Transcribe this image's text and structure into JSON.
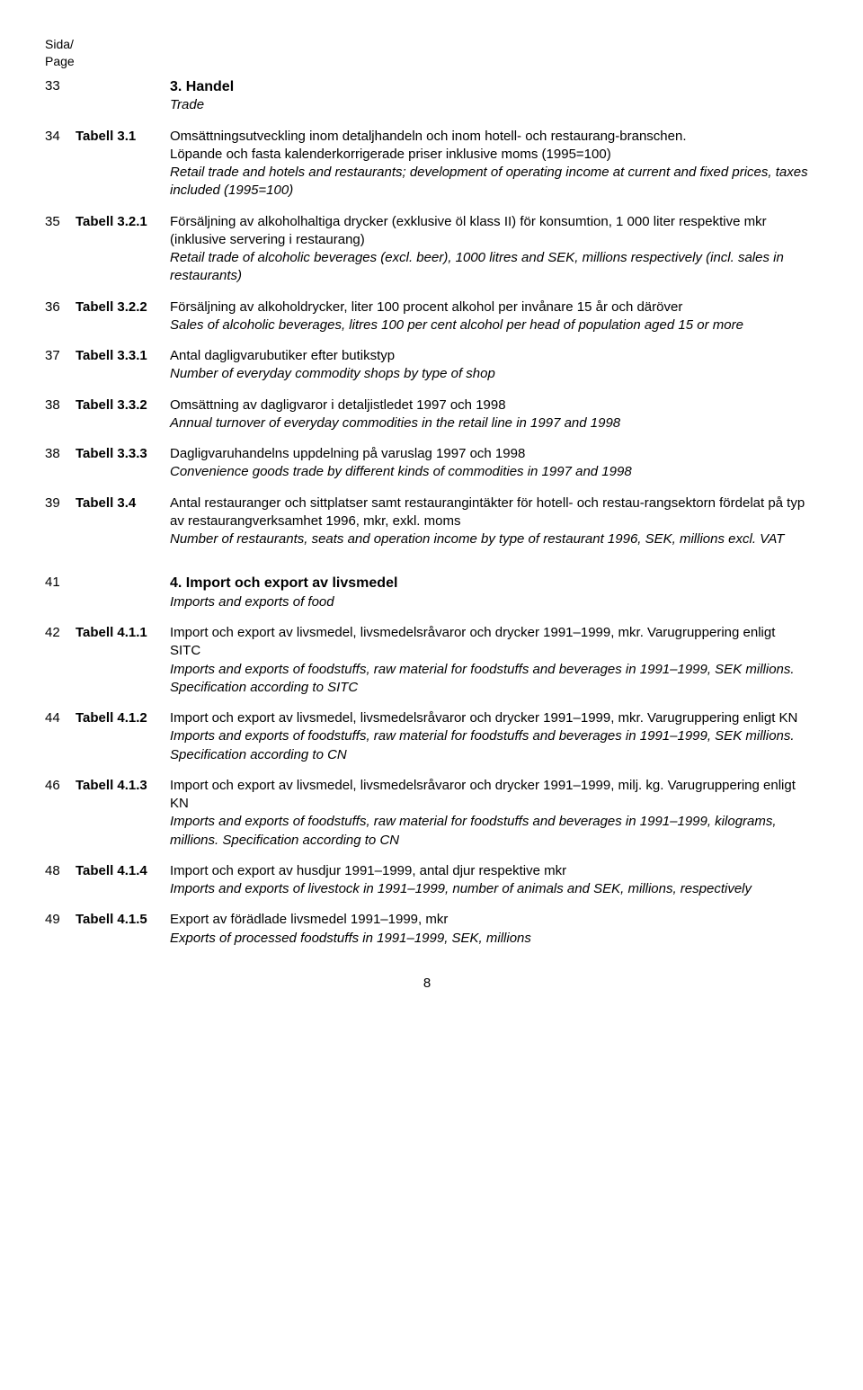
{
  "header": {
    "l1": "Sida/",
    "l2": "Page"
  },
  "entries": [
    {
      "page": "33",
      "label": "",
      "sv_b": "3. Handel",
      "sv": "",
      "en": "Trade",
      "section": true
    },
    {
      "page": "34",
      "label": "Tabell 3.1",
      "sv": "Omsättningsutveckling inom detaljhandeln och inom hotell- och restaurang-branschen.",
      "cont": "Löpande och fasta kalenderkorrigerade priser inklusive moms (1995=100)",
      "en": "Retail trade and hotels and restaurants; development of operating income at current and fixed prices, taxes included (1995=100)"
    },
    {
      "page": "35",
      "label": "Tabell 3.2.1",
      "sv": "Försäljning av alkoholhaltiga drycker (exklusive öl klass II) för konsumtion, 1 000 liter respektive mkr (inklusive servering i restaurang)",
      "en": "Retail trade of alcoholic beverages (excl. beer), 1000 litres and SEK, millions respectively (incl. sales in restaurants)"
    },
    {
      "page": "36",
      "label": "Tabell 3.2.2",
      "sv": "Försäljning av alkoholdrycker, liter 100 procent alkohol per invånare 15 år och däröver",
      "en": "Sales of alcoholic beverages, litres 100 per cent alcohol per head of population aged 15 or more"
    },
    {
      "page": "37",
      "label": "Tabell 3.3.1",
      "sv": "Antal dagligvarubutiker efter butikstyp",
      "en": "Number of everyday commodity shops by type of shop"
    },
    {
      "page": "38",
      "label": "Tabell 3.3.2",
      "sv": "Omsättning av dagligvaror i detaljistledet 1997 och 1998",
      "en": "Annual turnover of everyday commodities in the retail line in 1997 and 1998"
    },
    {
      "page": "38",
      "label": "Tabell 3.3.3",
      "sv": "Dagligvaruhandelns uppdelning på varuslag 1997 och 1998",
      "en": "Convenience goods trade by different kinds of commodities in 1997 and 1998"
    },
    {
      "page": "39",
      "label": "Tabell 3.4",
      "sv": "Antal restauranger och sittplatser samt restaurangintäkter för hotell- och restau-rangsektorn fördelat på typ av restaurangverksamhet 1996, mkr, exkl. moms",
      "en": "Number of restaurants, seats and operation income by type of restaurant 1996, SEK, millions excl. VAT"
    },
    {
      "page": "41",
      "label": "",
      "sv_b": "4. Import och export av livsmedel",
      "sv": "",
      "en": "Imports and exports of food",
      "section": true,
      "gap": true
    },
    {
      "page": "42",
      "label": "Tabell 4.1.1",
      "sv": "Import och export av livsmedel, livsmedelsråvaror och drycker 1991–1999, mkr. Varugruppering enligt SITC",
      "en": "Imports and exports of foodstuffs, raw material for foodstuffs and beverages in 1991–1999, SEK millions. Specification according to SITC"
    },
    {
      "page": "44",
      "label": "Tabell 4.1.2",
      "sv": "Import och export av livsmedel, livsmedelsråvaror och drycker 1991–1999, mkr. Varugruppering enligt KN",
      "en": "Imports and exports of foodstuffs, raw material for foodstuffs and beverages in 1991–1999, SEK millions. Specification according to CN"
    },
    {
      "page": "46",
      "label": "Tabell 4.1.3",
      "sv": "Import och export av livsmedel, livsmedelsråvaror och drycker 1991–1999, milj. kg. Varugruppering enligt KN",
      "en": "Imports and exports of foodstuffs, raw material for foodstuffs and beverages in 1991–1999, kilograms, millions. Specification according to CN"
    },
    {
      "page": "48",
      "label": "Tabell 4.1.4",
      "sv": "Import och export av husdjur 1991–1999, antal djur respektive mkr",
      "en": "Imports and exports of livestock in 1991–1999, number of animals and SEK, millions, respectively"
    },
    {
      "page": "49",
      "label": "Tabell 4.1.5",
      "sv": "Export av förädlade livsmedel 1991–1999, mkr",
      "en": "Exports of processed foodstuffs in 1991–1999, SEK, millions"
    }
  ],
  "footer": "8"
}
